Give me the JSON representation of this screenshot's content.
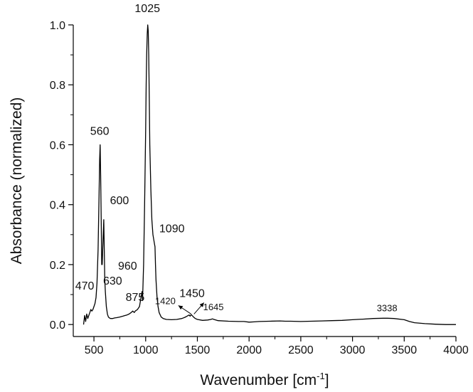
{
  "chart_data": {
    "type": "line",
    "title": "",
    "xlabel": "Wavenumber [cm",
    "xlabel_sup": "-1",
    "xlabel_end": "]",
    "ylabel": "Absorbance (normalized)",
    "xlim": [
      300,
      4000
    ],
    "ylim": [
      -0.04,
      1.0
    ],
    "x_ticks": [
      500,
      1000,
      1500,
      2000,
      2500,
      3000,
      3500,
      4000
    ],
    "y_ticks": [
      0.0,
      0.2,
      0.4,
      0.6,
      0.8,
      1.0
    ],
    "x_tick_labels": [
      "500",
      "1000",
      "1500",
      "2000",
      "2500",
      "3000",
      "3500",
      "4000"
    ],
    "y_tick_labels": [
      "0.0",
      "0.2",
      "0.4",
      "0.6",
      "0.8",
      "1.0"
    ],
    "grid": false,
    "legend": "none",
    "series": [
      {
        "color": "#000000",
        "x": [
          400,
          410,
          420,
          430,
          440,
          450,
          460,
          470,
          480,
          490,
          500,
          510,
          520,
          530,
          540,
          550,
          555,
          560,
          565,
          570,
          575,
          580,
          585,
          590,
          595,
          600,
          605,
          610,
          620,
          630,
          640,
          650,
          660,
          680,
          700,
          720,
          750,
          780,
          800,
          820,
          840,
          860,
          875,
          890,
          900,
          920,
          940,
          950,
          960,
          965,
          970,
          980,
          990,
          1000,
          1005,
          1010,
          1015,
          1020,
          1025,
          1030,
          1035,
          1040,
          1050,
          1060,
          1070,
          1080,
          1085,
          1090,
          1095,
          1100,
          1110,
          1120,
          1130,
          1150,
          1170,
          1200,
          1250,
          1300,
          1350,
          1380,
          1400,
          1420,
          1430,
          1440,
          1450,
          1460,
          1480,
          1500,
          1550,
          1600,
          1630,
          1645,
          1660,
          1700,
          1800,
          1900,
          1950,
          2000,
          2050,
          2100,
          2200,
          2300,
          2350,
          2400,
          2500,
          2600,
          2700,
          2800,
          2900,
          3000,
          3100,
          3200,
          3300,
          3338,
          3400,
          3500,
          3550,
          3600,
          3700,
          3800,
          3900,
          4000
        ],
        "y": [
          0.0,
          0.03,
          0.01,
          0.035,
          0.02,
          0.03,
          0.04,
          0.05,
          0.045,
          0.05,
          0.06,
          0.07,
          0.09,
          0.14,
          0.25,
          0.45,
          0.55,
          0.6,
          0.5,
          0.35,
          0.2,
          0.2,
          0.25,
          0.3,
          0.35,
          0.25,
          0.15,
          0.11,
          0.06,
          0.035,
          0.025,
          0.022,
          0.02,
          0.02,
          0.022,
          0.023,
          0.025,
          0.028,
          0.03,
          0.032,
          0.035,
          0.04,
          0.045,
          0.04,
          0.045,
          0.05,
          0.06,
          0.08,
          0.1,
          0.11,
          0.08,
          0.2,
          0.4,
          0.65,
          0.8,
          0.9,
          0.97,
          1.0,
          0.98,
          0.9,
          0.75,
          0.6,
          0.45,
          0.35,
          0.3,
          0.28,
          0.27,
          0.26,
          0.2,
          0.15,
          0.09,
          0.06,
          0.04,
          0.025,
          0.02,
          0.017,
          0.016,
          0.017,
          0.02,
          0.024,
          0.028,
          0.032,
          0.028,
          0.033,
          0.03,
          0.026,
          0.02,
          0.017,
          0.014,
          0.015,
          0.017,
          0.019,
          0.017,
          0.013,
          0.011,
          0.01,
          0.01,
          0.008,
          0.009,
          0.01,
          0.011,
          0.012,
          0.011,
          0.011,
          0.01,
          0.011,
          0.012,
          0.013,
          0.014,
          0.016,
          0.018,
          0.02,
          0.021,
          0.021,
          0.02,
          0.016,
          0.01,
          0.006,
          0.003,
          0.001,
          0.0,
          0.0
        ]
      }
    ],
    "annotations": [
      {
        "label": "470",
        "x": 470,
        "y": 0.05
      },
      {
        "label": "560",
        "x": 560,
        "y": 0.6
      },
      {
        "label": "600",
        "x": 600,
        "y": 0.35
      },
      {
        "label": "630",
        "x": 630,
        "y": 0.11
      },
      {
        "label": "875",
        "x": 875,
        "y": 0.045
      },
      {
        "label": "960",
        "x": 960,
        "y": 0.11
      },
      {
        "label": "1025",
        "x": 1025,
        "y": 1.0
      },
      {
        "label": "1090",
        "x": 1090,
        "y": 0.26
      },
      {
        "label": "1420",
        "x": 1420,
        "y": 0.032
      },
      {
        "label": "1450",
        "x": 1450,
        "y": 0.03
      },
      {
        "label": "1645",
        "x": 1645,
        "y": 0.019
      },
      {
        "label": "3338",
        "x": 3338,
        "y": 0.021
      }
    ]
  }
}
